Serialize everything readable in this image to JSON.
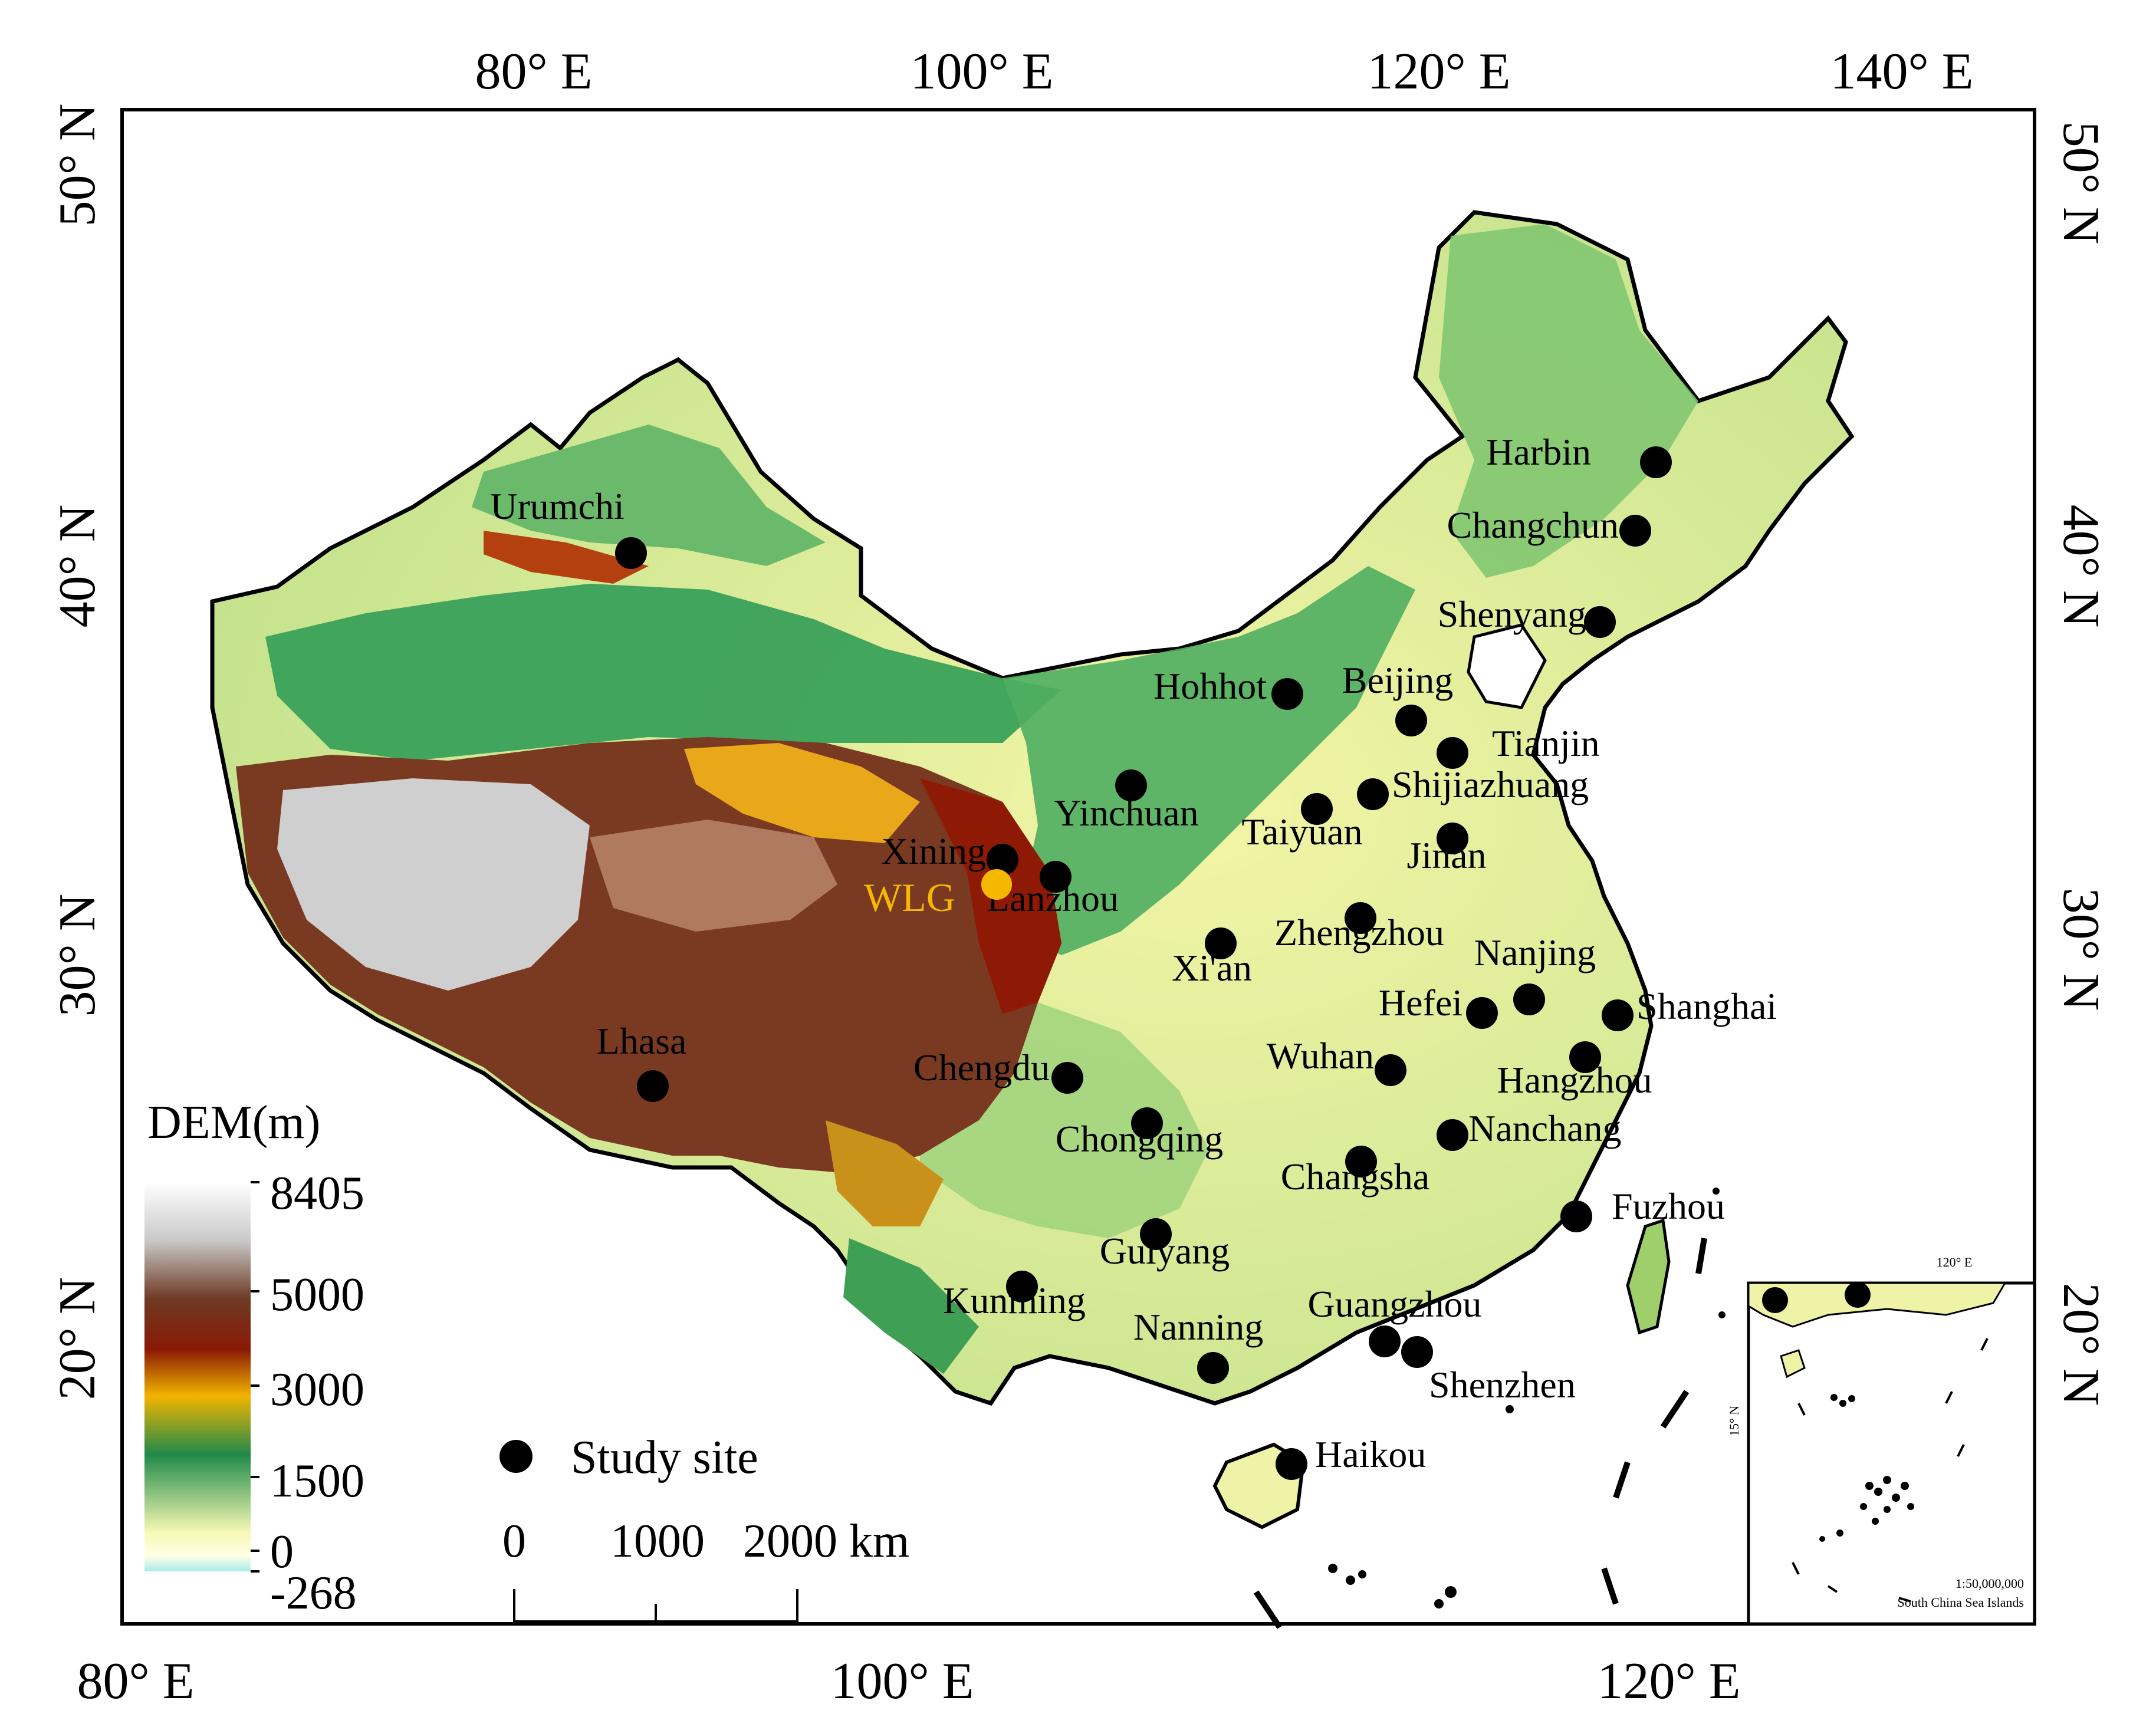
{
  "ticks": {
    "top": [
      "80° E",
      "100° E",
      "120° E",
      "140° E"
    ],
    "bottom": [
      "80° E",
      "100° E",
      "120° E"
    ],
    "left": [
      "50° N",
      "40° N",
      "30° N",
      "20° N"
    ],
    "right": [
      "50° N",
      "40° N",
      "30° N",
      "20° N"
    ]
  },
  "legend": {
    "title": "DEM(m)",
    "values": [
      "8405",
      "5000",
      "3000",
      "1500",
      "0",
      "-268"
    ],
    "study_site_label": "Study site"
  },
  "scalebar": {
    "labels": [
      "0",
      "1000",
      "2000 km"
    ]
  },
  "wlg_label": "WLG",
  "cities": [
    "Urumchi",
    "Harbin",
    "Changchun",
    "Shenyang",
    "Hohhot",
    "Beijing",
    "Tianjin",
    "Shijiazhuang",
    "Taiyuan",
    "Jinan",
    "Yinchuan",
    "Xining",
    "Lanzhou",
    "Zhengzhou",
    "Xi'an",
    "Nanjing",
    "Hefei",
    "Shanghai",
    "Wuhan",
    "Hangzhou",
    "Lhasa",
    "Chengdu",
    "Chongqing",
    "Nanchang",
    "Changsha",
    "Fuzhou",
    "Guiyang",
    "Kunming",
    "Guangzhou",
    "Nanning",
    "Shenzhen",
    "Haikou"
  ],
  "inset": {
    "lon_label": "120° E",
    "lat_label": "15° N",
    "scale": "1:50,000,000",
    "title": "South China Sea Islands"
  },
  "colors": {
    "dem_low": "#f5f8b8",
    "dem_green": "#2f9a55",
    "dem_mid": "#e3a21a",
    "dem_high": "#7a1a08",
    "dem_peak": "#ffffff",
    "wlg": "#f5b800"
  }
}
